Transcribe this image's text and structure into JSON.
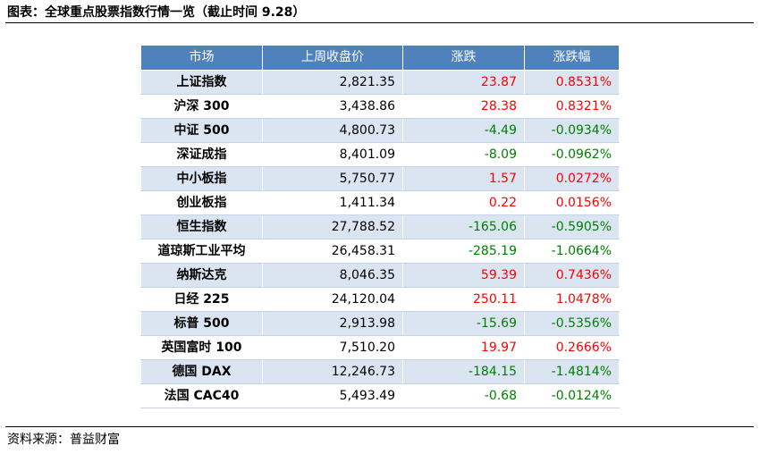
{
  "title": "图表：全球重点股票指数行情一览（截止时间 9.28）",
  "source": "资料来源：普益财富",
  "colors": {
    "header_bg": "#4f81bd",
    "band": "#dbe5f1",
    "up": "#ff0000",
    "down": "#008000"
  },
  "table": {
    "headers": [
      "市场",
      "上周收盘价",
      "涨跌",
      "涨跌幅"
    ],
    "rows": [
      {
        "market": "上证指数",
        "close": "2,821.35",
        "change": "23.87",
        "pct": "0.8531%"
      },
      {
        "market": "沪深 300",
        "close": "3,438.86",
        "change": "28.38",
        "pct": "0.8321%"
      },
      {
        "market": "中证 500",
        "close": "4,800.73",
        "change": "-4.49",
        "pct": "-0.0934%"
      },
      {
        "market": "深证成指",
        "close": "8,401.09",
        "change": "-8.09",
        "pct": "-0.0962%"
      },
      {
        "market": "中小板指",
        "close": "5,750.77",
        "change": "1.57",
        "pct": "0.0272%"
      },
      {
        "market": "创业板指",
        "close": "1,411.34",
        "change": "0.22",
        "pct": "0.0156%"
      },
      {
        "market": "恒生指数",
        "close": "27,788.52",
        "change": "-165.06",
        "pct": "-0.5905%"
      },
      {
        "market": "道琼斯工业平均",
        "close": "26,458.31",
        "change": "-285.19",
        "pct": "-1.0664%"
      },
      {
        "market": "纳斯达克",
        "close": "8,046.35",
        "change": "59.39",
        "pct": "0.7436%"
      },
      {
        "market": "日经 225",
        "close": "24,120.04",
        "change": "250.11",
        "pct": "1.0478%"
      },
      {
        "market": "标普 500",
        "close": "2,913.98",
        "change": "-15.69",
        "pct": "-0.5356%"
      },
      {
        "market": "英国富时 100",
        "close": "7,510.20",
        "change": "19.97",
        "pct": "0.2666%"
      },
      {
        "market": "德国 DAX",
        "close": "12,246.73",
        "change": "-184.15",
        "pct": "-1.4814%"
      },
      {
        "market": "法国 CAC40",
        "close": "5,493.49",
        "change": "-0.68",
        "pct": "-0.0124%"
      }
    ]
  }
}
